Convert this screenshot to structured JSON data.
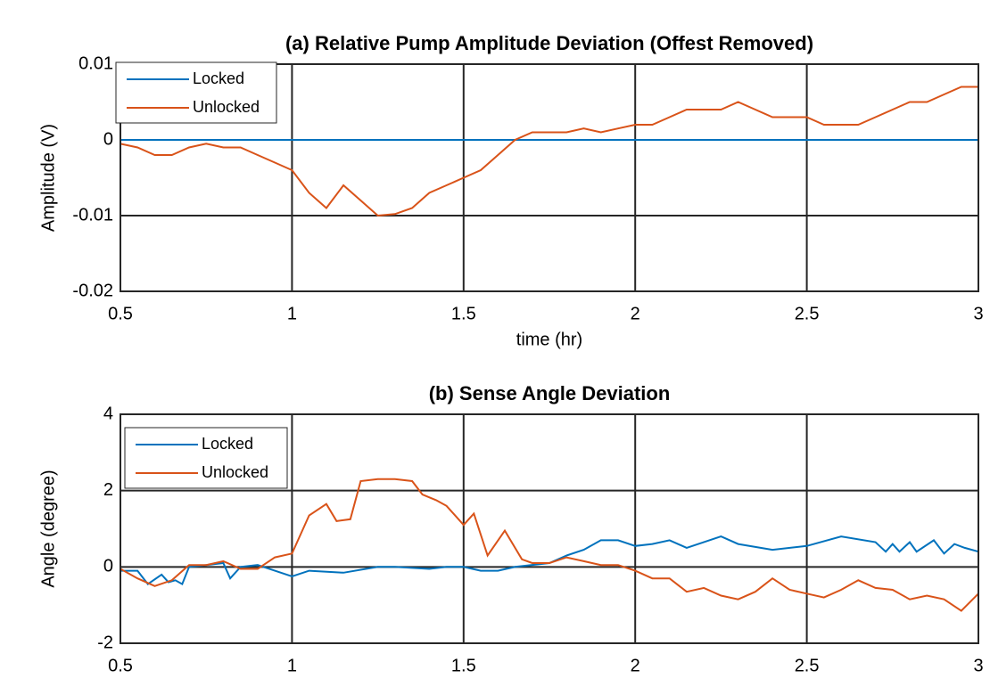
{
  "chart_data": [
    {
      "type": "line",
      "title": "(a) Relative Pump Amplitude Deviation (Offest Removed)",
      "xlabel": "time (hr)",
      "ylabel": "Amplitude (V)",
      "xlim": [
        0.5,
        3
      ],
      "ylim": [
        -0.02,
        0.01
      ],
      "xticks": [
        0.5,
        1,
        1.5,
        2,
        2.5,
        3
      ],
      "yticks": [
        -0.02,
        -0.01,
        0,
        0.01
      ],
      "grid": true,
      "legend": "upper left",
      "series": [
        {
          "name": "Locked",
          "color": "#0072bd",
          "x": [
            0.5,
            3
          ],
          "values": [
            0,
            0
          ]
        },
        {
          "name": "Unlocked",
          "color": "#d95319",
          "x": [
            0.5,
            0.55,
            0.6,
            0.65,
            0.7,
            0.75,
            0.8,
            0.85,
            0.9,
            0.95,
            1.0,
            1.05,
            1.1,
            1.15,
            1.2,
            1.25,
            1.3,
            1.35,
            1.4,
            1.45,
            1.5,
            1.55,
            1.6,
            1.65,
            1.7,
            1.75,
            1.8,
            1.85,
            1.9,
            1.95,
            2.0,
            2.05,
            2.1,
            2.15,
            2.2,
            2.25,
            2.3,
            2.35,
            2.4,
            2.45,
            2.5,
            2.55,
            2.6,
            2.65,
            2.7,
            2.75,
            2.8,
            2.85,
            2.9,
            2.95,
            3.0
          ],
          "values": [
            -0.0005,
            -0.001,
            -0.002,
            -0.002,
            -0.001,
            -0.0005,
            -0.001,
            -0.001,
            -0.002,
            -0.003,
            -0.004,
            -0.007,
            -0.009,
            -0.006,
            -0.008,
            -0.01,
            -0.0098,
            -0.009,
            -0.007,
            -0.006,
            -0.005,
            -0.004,
            -0.002,
            0,
            0.001,
            0.001,
            0.001,
            0.0015,
            0.001,
            0.0015,
            0.002,
            0.002,
            0.003,
            0.004,
            0.004,
            0.004,
            0.005,
            0.004,
            0.003,
            0.003,
            0.003,
            0.002,
            0.002,
            0.002,
            0.003,
            0.004,
            0.005,
            0.005,
            0.006,
            0.007,
            0.007
          ]
        }
      ]
    },
    {
      "type": "line",
      "title": "(b) Sense Angle Deviation",
      "ylabel": "Angle (degree)",
      "xlim": [
        0.5,
        3
      ],
      "ylim": [
        -2,
        4
      ],
      "xticks": [
        0.5,
        1,
        1.5,
        2,
        2.5,
        3
      ],
      "yticks": [
        -2,
        0,
        2,
        4
      ],
      "grid": true,
      "legend": "upper left",
      "series": [
        {
          "name": "Locked",
          "color": "#0072bd",
          "x": [
            0.5,
            0.55,
            0.58,
            0.62,
            0.64,
            0.66,
            0.68,
            0.7,
            0.75,
            0.8,
            0.82,
            0.85,
            0.9,
            0.95,
            1.0,
            1.05,
            1.15,
            1.25,
            1.3,
            1.4,
            1.45,
            1.5,
            1.55,
            1.6,
            1.65,
            1.75,
            1.8,
            1.85,
            1.9,
            1.95,
            2.0,
            2.05,
            2.1,
            2.15,
            2.25,
            2.3,
            2.4,
            2.5,
            2.6,
            2.7,
            2.73,
            2.75,
            2.77,
            2.8,
            2.82,
            2.87,
            2.9,
            2.93,
            2.96,
            3.0
          ],
          "values": [
            -0.1,
            -0.1,
            -0.45,
            -0.2,
            -0.4,
            -0.35,
            -0.45,
            0,
            0.05,
            0.1,
            -0.3,
            0,
            0.05,
            -0.1,
            -0.25,
            -0.1,
            -0.15,
            0,
            0,
            -0.05,
            0,
            0,
            -0.1,
            -0.1,
            0,
            0.1,
            0.3,
            0.45,
            0.7,
            0.7,
            0.55,
            0.6,
            0.7,
            0.5,
            0.8,
            0.6,
            0.45,
            0.55,
            0.8,
            0.65,
            0.4,
            0.6,
            0.4,
            0.65,
            0.4,
            0.7,
            0.35,
            0.6,
            0.5,
            0.4
          ]
        },
        {
          "name": "Unlocked",
          "color": "#d95319",
          "x": [
            0.5,
            0.55,
            0.6,
            0.65,
            0.7,
            0.75,
            0.8,
            0.85,
            0.9,
            0.95,
            1.0,
            1.05,
            1.1,
            1.13,
            1.17,
            1.2,
            1.25,
            1.3,
            1.35,
            1.38,
            1.42,
            1.45,
            1.5,
            1.53,
            1.57,
            1.62,
            1.67,
            1.7,
            1.75,
            1.8,
            1.85,
            1.9,
            1.95,
            2.0,
            2.05,
            2.1,
            2.15,
            2.2,
            2.25,
            2.3,
            2.35,
            2.4,
            2.45,
            2.5,
            2.55,
            2.6,
            2.65,
            2.7,
            2.75,
            2.8,
            2.85,
            2.9,
            2.95,
            3.0
          ],
          "values": [
            -0.05,
            -0.3,
            -0.5,
            -0.35,
            0.05,
            0.05,
            0.15,
            -0.05,
            -0.05,
            0.25,
            0.35,
            1.35,
            1.65,
            1.2,
            1.25,
            2.25,
            2.3,
            2.3,
            2.25,
            1.9,
            1.75,
            1.6,
            1.1,
            1.4,
            0.3,
            0.95,
            0.2,
            0.1,
            0.1,
            0.25,
            0.15,
            0.05,
            0.05,
            -0.1,
            -0.3,
            -0.3,
            -0.65,
            -0.55,
            -0.75,
            -0.85,
            -0.65,
            -0.3,
            -0.6,
            -0.7,
            -0.8,
            -0.6,
            -0.35,
            -0.55,
            -0.6,
            -0.85,
            -0.75,
            -0.85,
            -1.15,
            -0.7
          ]
        }
      ]
    }
  ]
}
